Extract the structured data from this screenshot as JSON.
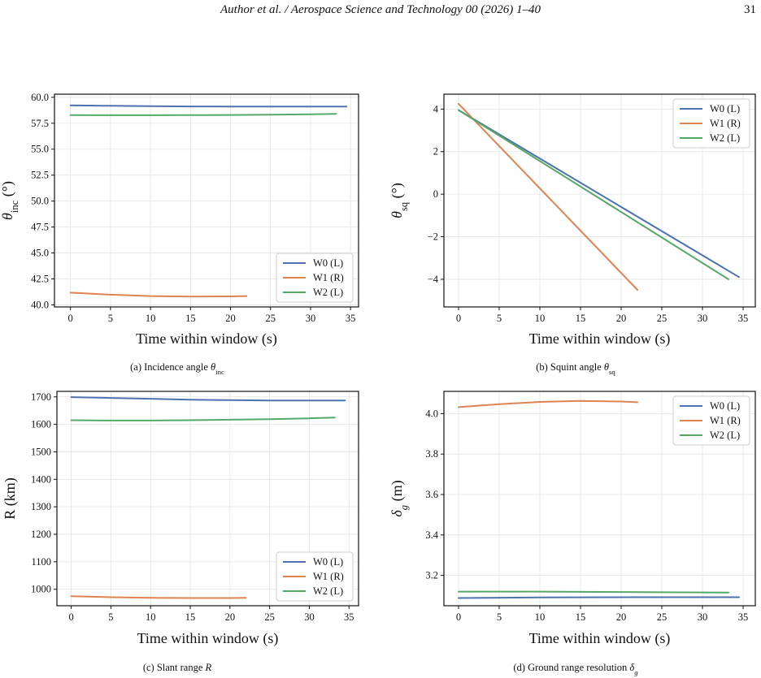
{
  "header": {
    "running_title": "Author et al. / Aerospace Science and Technology 00 (2026) 1–40",
    "page_number": "31"
  },
  "colors": {
    "W0": "#4c72b0",
    "W1": "#dd8452",
    "W2": "#55a868"
  },
  "chart_data": [
    {
      "type": "line",
      "caption": "(a) Incidence angle θ_inc",
      "xlabel": "Time within window (s)",
      "ylabel": "θ_inc (°)",
      "xlim": [
        -2,
        36
      ],
      "ylim": [
        39.8,
        60.3
      ],
      "xticks": [
        0,
        5,
        10,
        15,
        20,
        25,
        30,
        35
      ],
      "yticks": [
        40.0,
        42.5,
        45.0,
        47.5,
        50.0,
        52.5,
        55.0,
        57.5,
        60.0
      ],
      "ytick_labels": [
        "40.0",
        "42.5",
        "45.0",
        "47.5",
        "50.0",
        "52.5",
        "55.0",
        "57.5",
        "60.0"
      ],
      "grid": true,
      "legend": "lower-right",
      "series": [
        {
          "name": "W0 (L)",
          "x": [
            0,
            5,
            10,
            15,
            20,
            25,
            30,
            34.5
          ],
          "y": [
            59.22,
            59.18,
            59.14,
            59.12,
            59.1,
            59.1,
            59.1,
            59.1
          ]
        },
        {
          "name": "W1 (R)",
          "x": [
            0,
            5,
            10,
            15,
            20,
            22
          ],
          "y": [
            41.18,
            40.98,
            40.85,
            40.8,
            40.82,
            40.85
          ]
        },
        {
          "name": "W2 (L)",
          "x": [
            0,
            5,
            10,
            15,
            20,
            25,
            30,
            33.2
          ],
          "y": [
            58.28,
            58.27,
            58.27,
            58.28,
            58.3,
            58.33,
            58.37,
            58.4
          ]
        }
      ]
    },
    {
      "type": "line",
      "caption": "(b) Squint angle θ_sq",
      "xlabel": "Time within window (s)",
      "ylabel": "θ_sq (°)",
      "xlim": [
        -1.8,
        36.5
      ],
      "ylim": [
        -5.3,
        4.7
      ],
      "xticks": [
        0,
        5,
        10,
        15,
        20,
        25,
        30,
        35
      ],
      "yticks": [
        -4,
        -2,
        0,
        2,
        4
      ],
      "ytick_labels": [
        "−4",
        "−2",
        "0",
        "2",
        "4"
      ],
      "grid": true,
      "legend": "top-right",
      "series": [
        {
          "name": "W0 (L)",
          "x": [
            0,
            34.5
          ],
          "y": [
            3.95,
            -3.9
          ]
        },
        {
          "name": "W1 (R)",
          "x": [
            0,
            22
          ],
          "y": [
            4.25,
            -4.5
          ]
        },
        {
          "name": "W2 (L)",
          "x": [
            0,
            33.2
          ],
          "y": [
            3.95,
            -4.0
          ]
        }
      ]
    },
    {
      "type": "line",
      "caption": "(c) Slant range R",
      "xlabel": "Time within window (s)",
      "ylabel": "R (km)",
      "xlim": [
        -1.8,
        36.2
      ],
      "ylim": [
        940,
        1720
      ],
      "xticks": [
        0,
        5,
        10,
        15,
        20,
        25,
        30,
        35
      ],
      "yticks": [
        1000,
        1100,
        1200,
        1300,
        1400,
        1500,
        1600,
        1700
      ],
      "ytick_labels": [
        "1000",
        "1100",
        "1200",
        "1300",
        "1400",
        "1500",
        "1600",
        "1700"
      ],
      "grid": true,
      "legend": "lower-right",
      "series": [
        {
          "name": "W0 (L)",
          "x": [
            0,
            5,
            10,
            15,
            20,
            25,
            30,
            34.5
          ],
          "y": [
            1699,
            1696,
            1693,
            1690,
            1688,
            1687,
            1687,
            1687
          ]
        },
        {
          "name": "W1 (R)",
          "x": [
            0,
            5,
            10,
            15,
            20,
            22
          ],
          "y": [
            975,
            971,
            969,
            968,
            968,
            969
          ]
        },
        {
          "name": "W2 (L)",
          "x": [
            0,
            5,
            10,
            15,
            20,
            25,
            30,
            33.2
          ],
          "y": [
            1615,
            1614,
            1614,
            1615,
            1617,
            1619,
            1622,
            1625
          ]
        }
      ]
    },
    {
      "type": "line",
      "caption": "(d) Ground range resolution δ_g",
      "xlabel": "Time within window (s)",
      "ylabel": "δ_g (m)",
      "xlim": [
        -1.8,
        36.5
      ],
      "ylim": [
        3.05,
        4.11
      ],
      "xticks": [
        0,
        5,
        10,
        15,
        20,
        25,
        30,
        35
      ],
      "yticks": [
        3.2,
        3.4,
        3.6,
        3.8,
        4.0
      ],
      "ytick_labels": [
        "3.2",
        "3.4",
        "3.6",
        "3.8",
        "4.0"
      ],
      "grid": true,
      "legend": "top-right",
      "series": [
        {
          "name": "W0 (L)",
          "x": [
            0,
            10,
            20,
            34.5
          ],
          "y": [
            3.088,
            3.091,
            3.092,
            3.092
          ]
        },
        {
          "name": "W1 (R)",
          "x": [
            0,
            5,
            10,
            15,
            20,
            22
          ],
          "y": [
            4.032,
            4.047,
            4.058,
            4.063,
            4.06,
            4.056
          ]
        },
        {
          "name": "W2 (L)",
          "x": [
            0,
            10,
            20,
            33.2
          ],
          "y": [
            3.12,
            3.12,
            3.118,
            3.115
          ]
        }
      ]
    }
  ]
}
